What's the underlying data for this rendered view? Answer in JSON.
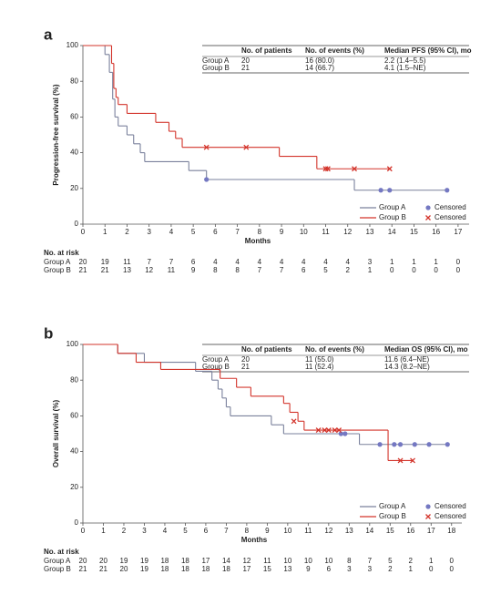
{
  "chart_data": [
    {
      "type": "km",
      "label": "a",
      "y_label": "Progression-free survival (%)",
      "x_label": "Months",
      "xlim": [
        0,
        17.5
      ],
      "ylim": [
        0,
        100
      ],
      "xticks": [
        0,
        1,
        2,
        3,
        4,
        5,
        6,
        7,
        8,
        9,
        10,
        11,
        12,
        13,
        14,
        15,
        16,
        17
      ],
      "yticks": [
        0,
        20,
        40,
        60,
        80,
        100
      ],
      "censored_label": "Censored",
      "table": {
        "columns": [
          "No. of patients",
          "No. of events (%)",
          "Median PFS (95% CI), mo"
        ],
        "rows": [
          [
            "Group A",
            "20",
            "16 (80.0)",
            "2.2 (1.4–5.5)"
          ],
          [
            "Group B",
            "21",
            "14 (66.7)",
            "4.1 (1.5–NE)"
          ]
        ]
      },
      "at_risk_title": "No. at risk",
      "series": [
        {
          "name": "Group A",
          "color": "#7a819c",
          "censor_color": "#7478c2",
          "censor_marker": "circle",
          "x": [
            0,
            1.0,
            1.2,
            1.35,
            1.45,
            1.6,
            2.0,
            2.3,
            2.6,
            2.8,
            4.8,
            5.6,
            12.3,
            16.5
          ],
          "values": [
            100,
            95,
            85,
            70,
            60,
            55,
            50,
            45,
            40,
            35,
            30,
            25,
            19,
            19
          ],
          "censored_x": [
            5.6,
            13.5,
            13.9,
            16.5
          ],
          "censored_values": [
            25,
            19,
            19,
            19
          ],
          "at_risk": [
            20,
            19,
            11,
            7,
            7,
            6,
            4,
            4,
            4,
            4,
            4,
            4,
            4,
            3,
            1,
            1,
            1,
            0
          ]
        },
        {
          "name": "Group B",
          "color": "#d3342b",
          "censor_color": "#d3342b",
          "censor_marker": "cross",
          "x": [
            0,
            1.3,
            1.4,
            1.5,
            1.6,
            2.0,
            3.3,
            3.9,
            4.2,
            4.5,
            8.9,
            10.6,
            13.9
          ],
          "values": [
            100,
            90,
            76,
            71,
            67,
            62,
            57,
            52,
            48,
            43,
            38,
            31,
            31
          ],
          "censored_x": [
            5.6,
            7.4,
            11.0,
            11.1,
            12.3,
            13.9
          ],
          "censored_values": [
            43,
            43,
            31,
            31,
            31,
            31
          ],
          "at_risk": [
            21,
            21,
            13,
            12,
            11,
            9,
            8,
            8,
            7,
            7,
            6,
            5,
            2,
            1,
            0,
            0,
            0,
            0
          ]
        }
      ]
    },
    {
      "type": "km",
      "label": "b",
      "y_label": "Overall survival (%)",
      "x_label": "Months",
      "xlim": [
        0,
        18.5
      ],
      "ylim": [
        0,
        100
      ],
      "xticks": [
        0,
        1,
        2,
        3,
        4,
        5,
        6,
        7,
        8,
        9,
        10,
        11,
        12,
        13,
        14,
        15,
        16,
        17,
        18
      ],
      "yticks": [
        0,
        20,
        40,
        60,
        80,
        100
      ],
      "censored_label": "Censored",
      "table": {
        "columns": [
          "No. of patients",
          "No. of events (%)",
          "Median OS (95% CI), mo"
        ],
        "rows": [
          [
            "Group A",
            "20",
            "11 (55.0)",
            "11.6 (6.4–NE)"
          ],
          [
            "Group B",
            "21",
            "11 (52.4)",
            "14.3 (8.2–NE)"
          ]
        ]
      },
      "at_risk_title": "No. at risk",
      "series": [
        {
          "name": "Group A",
          "color": "#7a819c",
          "censor_color": "#7478c2",
          "censor_marker": "circle",
          "x": [
            0,
            1.7,
            3.0,
            5.5,
            6.3,
            6.6,
            6.8,
            7.0,
            7.2,
            9.2,
            9.8,
            13.5,
            17.8
          ],
          "values": [
            100,
            95,
            90,
            85,
            80,
            75,
            70,
            65,
            60,
            55,
            50,
            44,
            44
          ],
          "censored_x": [
            12.6,
            12.8,
            14.5,
            15.2,
            15.5,
            16.2,
            16.9,
            17.8
          ],
          "censored_values": [
            50,
            50,
            44,
            44,
            44,
            44,
            44,
            44
          ],
          "at_risk": [
            20,
            20,
            19,
            19,
            18,
            18,
            17,
            14,
            12,
            11,
            10,
            10,
            10,
            8,
            7,
            5,
            2,
            1,
            0
          ]
        },
        {
          "name": "Group B",
          "color": "#d3342b",
          "censor_color": "#d3342b",
          "censor_marker": "cross",
          "x": [
            0,
            1.7,
            2.6,
            3.8,
            6.7,
            7.5,
            8.2,
            9.8,
            10.1,
            10.5,
            10.8,
            14.9,
            16.1
          ],
          "values": [
            100,
            95,
            90,
            86,
            81,
            76,
            71,
            67,
            62,
            57,
            52,
            35,
            35
          ],
          "censored_x": [
            10.3,
            11.5,
            11.8,
            12.0,
            12.3,
            12.5,
            15.5,
            16.1
          ],
          "censored_values": [
            57,
            52,
            52,
            52,
            52,
            52,
            35,
            35
          ],
          "at_risk": [
            21,
            21,
            20,
            19,
            18,
            18,
            18,
            18,
            17,
            15,
            13,
            9,
            6,
            3,
            3,
            2,
            1,
            0,
            0
          ]
        }
      ]
    }
  ]
}
